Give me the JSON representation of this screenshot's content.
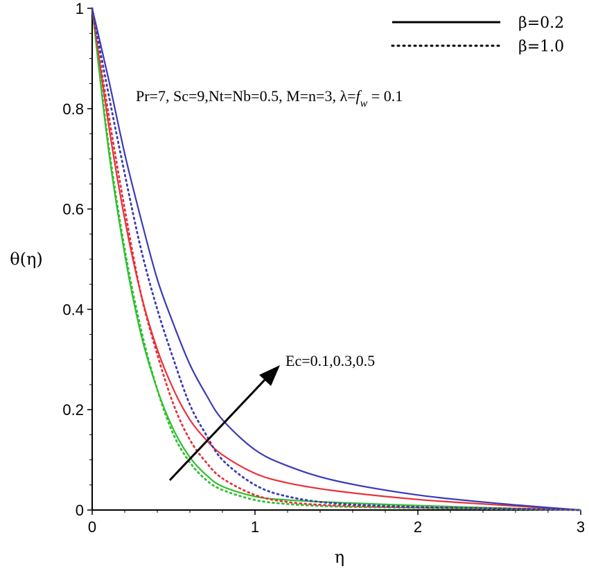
{
  "chart_data": {
    "type": "line",
    "title": "",
    "xlabel": "η",
    "ylabel": "θ(η)",
    "xlim": [
      0,
      3
    ],
    "ylim": [
      0,
      1
    ],
    "xticks": [
      "0",
      "1",
      "2",
      "3"
    ],
    "yticks": [
      "0",
      "0.2",
      "0.4",
      "0.6",
      "0.8",
      "1"
    ],
    "grid": false,
    "legend_placement": "top-right",
    "legend": [
      {
        "label": "β=0.2",
        "style": "solid"
      },
      {
        "label": "β=1.0",
        "style": "dotted"
      }
    ],
    "params_text": "Pr=7, Sc=9,Nt=Nb=0.5, M=n=3, λ=",
    "params_fw": "f",
    "params_fw_sub": "w",
    "params_tail": " = 0.1",
    "arrow_text": "Ec=0.1,0.3,0.5",
    "colors": {
      "Ec=0.1": "#2fbf2f",
      "Ec=0.3": "#e8303a",
      "Ec=0.5": "#3a3ab8"
    },
    "series": [
      {
        "ec": "Ec=0.1",
        "style": "solid",
        "x": [
          0,
          0.1,
          0.2,
          0.3,
          0.4,
          0.5,
          0.6,
          0.7,
          0.8,
          1.0,
          1.2,
          1.5,
          2.0,
          2.5,
          3.0
        ],
        "y": [
          1,
          0.72,
          0.51,
          0.35,
          0.24,
          0.16,
          0.105,
          0.07,
          0.047,
          0.027,
          0.02,
          0.015,
          0.009,
          0.004,
          0
        ]
      },
      {
        "ec": "Ec=0.3",
        "style": "solid",
        "x": [
          0,
          0.1,
          0.2,
          0.3,
          0.4,
          0.5,
          0.6,
          0.7,
          0.8,
          1.0,
          1.2,
          1.5,
          2.0,
          2.5,
          3.0
        ],
        "y": [
          1,
          0.77,
          0.58,
          0.43,
          0.32,
          0.24,
          0.18,
          0.14,
          0.11,
          0.073,
          0.054,
          0.038,
          0.021,
          0.01,
          0
        ]
      },
      {
        "ec": "Ec=0.5",
        "style": "solid",
        "x": [
          0,
          0.1,
          0.2,
          0.3,
          0.4,
          0.5,
          0.6,
          0.7,
          0.8,
          1.0,
          1.2,
          1.5,
          2.0,
          2.5,
          3.0
        ],
        "y": [
          1,
          0.86,
          0.71,
          0.58,
          0.46,
          0.37,
          0.29,
          0.23,
          0.18,
          0.12,
          0.088,
          0.058,
          0.03,
          0.013,
          0
        ]
      },
      {
        "ec": "Ec=0.1",
        "style": "dotted",
        "x": [
          0,
          0.1,
          0.2,
          0.3,
          0.4,
          0.5,
          0.6,
          0.7,
          0.8,
          1.0,
          1.2,
          1.5,
          2.0,
          2.5,
          3.0
        ],
        "y": [
          1,
          0.73,
          0.52,
          0.36,
          0.24,
          0.15,
          0.095,
          0.06,
          0.04,
          0.02,
          0.012,
          0.007,
          0.004,
          0.002,
          0
        ]
      },
      {
        "ec": "Ec=0.3",
        "style": "dotted",
        "x": [
          0,
          0.1,
          0.2,
          0.3,
          0.4,
          0.5,
          0.6,
          0.7,
          0.8,
          1.0,
          1.2,
          1.5,
          2.0,
          2.5,
          3.0
        ],
        "y": [
          1,
          0.79,
          0.6,
          0.43,
          0.31,
          0.21,
          0.14,
          0.095,
          0.063,
          0.03,
          0.016,
          0.009,
          0.005,
          0.003,
          0
        ]
      },
      {
        "ec": "Ec=0.5",
        "style": "dotted",
        "x": [
          0,
          0.1,
          0.2,
          0.3,
          0.4,
          0.5,
          0.6,
          0.7,
          0.8,
          1.0,
          1.2,
          1.5,
          2.0,
          2.5,
          3.0
        ],
        "y": [
          1,
          0.83,
          0.67,
          0.52,
          0.4,
          0.3,
          0.21,
          0.15,
          0.1,
          0.05,
          0.027,
          0.013,
          0.006,
          0.003,
          0
        ]
      }
    ]
  }
}
